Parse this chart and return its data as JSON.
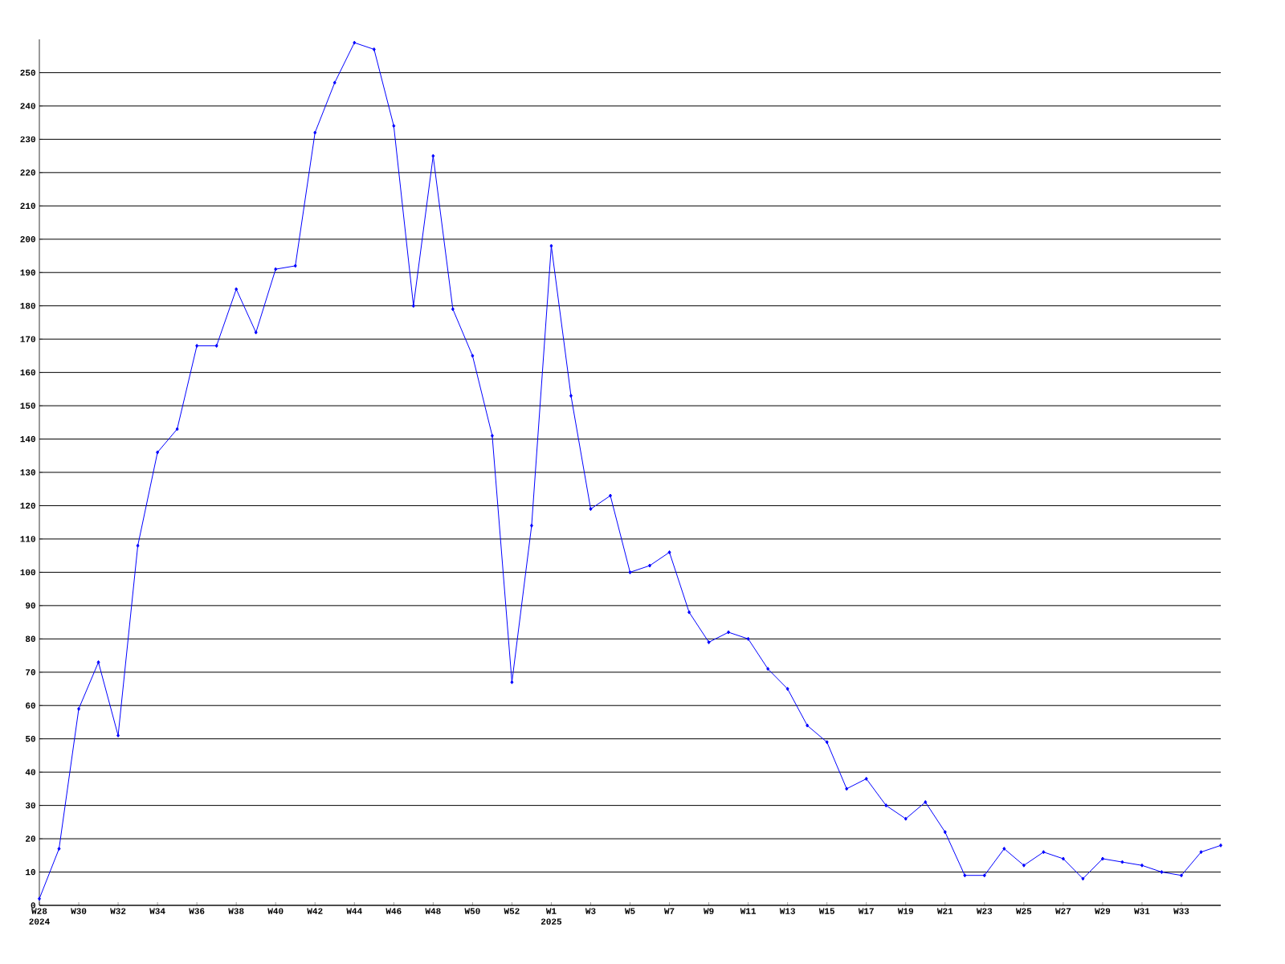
{
  "chart_data": {
    "type": "line",
    "color": "#0000ff",
    "marker": "diamond",
    "grid": "y",
    "categories": [
      "W28",
      null,
      "W30",
      null,
      "W32",
      null,
      "W34",
      null,
      "W36",
      null,
      "W38",
      null,
      "W40",
      null,
      "W42",
      null,
      "W44",
      null,
      "W46",
      null,
      "W48",
      null,
      "W50",
      null,
      "W52",
      null,
      "W1",
      null,
      "W3",
      null,
      "W5",
      null,
      "W7",
      null,
      "W9",
      null,
      "W11",
      null,
      "W13",
      null,
      "W15",
      null,
      "W17",
      null,
      "W19",
      null,
      "W21",
      null,
      "W23",
      null,
      "W25",
      null,
      "W27",
      null,
      "W29",
      null,
      "W31",
      null,
      "W33",
      null,
      null
    ],
    "values": [
      2,
      17,
      59,
      73,
      51,
      108,
      136,
      143,
      168,
      168,
      185,
      172,
      191,
      192,
      232,
      247,
      259,
      257,
      234,
      180,
      225,
      179,
      165,
      141,
      67,
      114,
      198,
      153,
      119,
      123,
      100,
      102,
      106,
      88,
      79,
      82,
      80,
      71,
      65,
      54,
      49,
      35,
      38,
      30,
      26,
      31,
      22,
      9,
      9,
      17,
      12,
      16,
      14,
      8,
      14,
      13,
      12,
      10,
      9,
      16,
      18
    ],
    "ylim": [
      0,
      260
    ],
    "yticks": [
      0,
      10,
      20,
      30,
      40,
      50,
      60,
      70,
      80,
      90,
      100,
      110,
      120,
      130,
      140,
      150,
      160,
      170,
      180,
      190,
      200,
      210,
      220,
      230,
      240,
      250
    ],
    "annotations": [
      "2024",
      "2025"
    ]
  }
}
